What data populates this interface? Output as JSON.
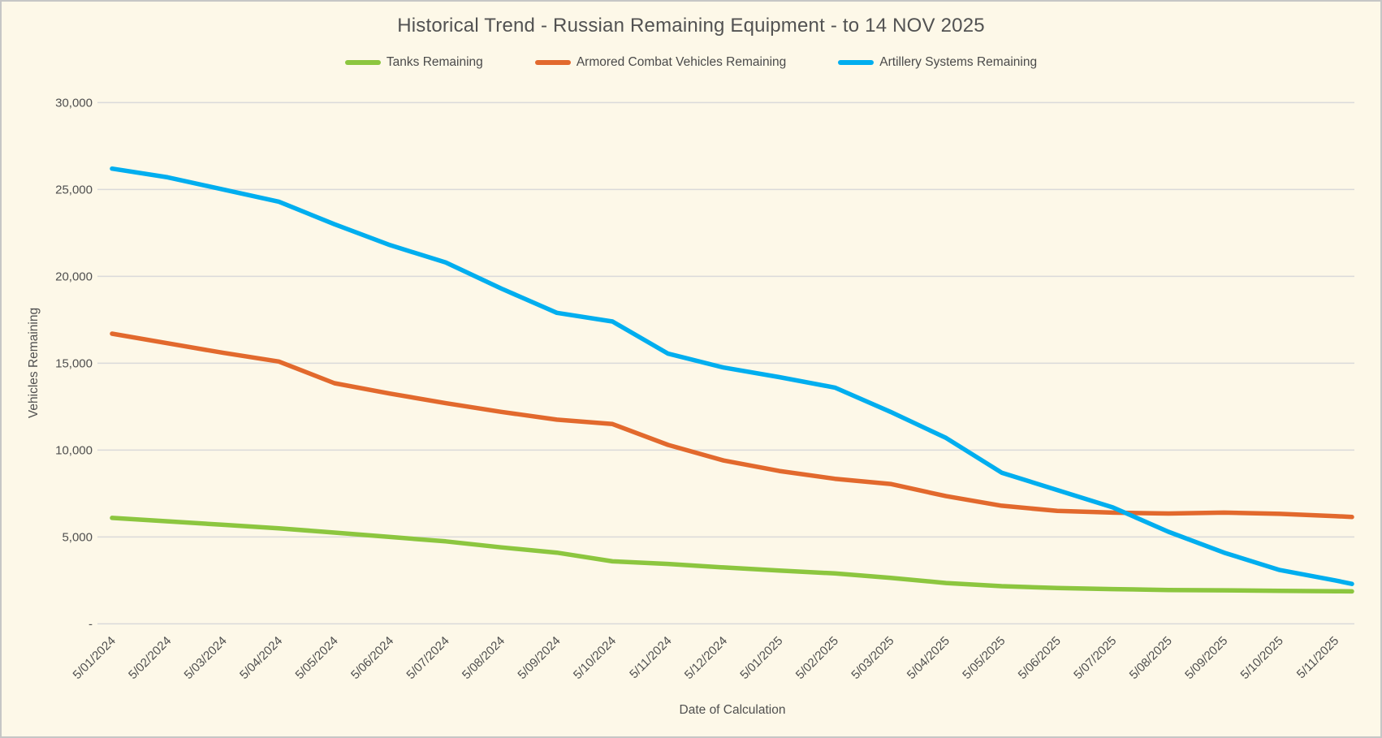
{
  "title": "Historical Trend - Russian Remaining Equipment - to 14 NOV 2025",
  "colors": {
    "background": "#FDF8E8",
    "frame_border": "#C6C6C6",
    "gridline": "#DADADA",
    "text": "#4f4f4f",
    "tanks_green": "#8CC63F",
    "acv_orange": "#E2692D",
    "artillery_blue": "#00AEEF"
  },
  "chart_data": {
    "type": "line",
    "title": "Historical Trend - Russian Remaining Equipment - to 14 NOV 2025",
    "xlabel": "Date of Calculation",
    "ylabel": "Vehicles Remaining",
    "ylim": [
      0,
      30000
    ],
    "y_tick_step": 5000,
    "y_tick_labels": [
      "-",
      "5,000",
      "10,000",
      "15,000",
      "20,000",
      "25,000",
      "30,000"
    ],
    "grid": "horizontal",
    "legend_position": "top",
    "x_labels": [
      "5/01/2024",
      "5/02/2024",
      "5/03/2024",
      "5/04/2024",
      "5/05/2024",
      "5/06/2024",
      "5/07/2024",
      "5/08/2024",
      "5/09/2024",
      "5/10/2024",
      "5/11/2024",
      "5/12/2024",
      "5/01/2025",
      "5/02/2025",
      "5/03/2025",
      "5/04/2025",
      "5/05/2025",
      "5/06/2025",
      "5/07/2025",
      "5/08/2025",
      "5/09/2025",
      "5/10/2025",
      "5/11/2025"
    ],
    "x_positions": [
      0,
      1,
      2,
      3,
      4,
      5,
      6,
      7,
      8,
      9,
      10,
      11,
      12,
      13,
      14,
      15,
      16,
      17,
      18,
      19,
      20,
      21,
      22,
      22.3
    ],
    "x_end_note": "series extend past the last tick to 14 NOV 2025",
    "series": [
      {
        "name": "Tanks Remaining",
        "color": "#8CC63F",
        "values": [
          6100,
          5900,
          5700,
          5500,
          5250,
          5000,
          4750,
          4400,
          4100,
          3600,
          3450,
          3250,
          3070,
          2900,
          2650,
          2350,
          2170,
          2060,
          2000,
          1950,
          1930,
          1900,
          1880,
          1870
        ]
      },
      {
        "name": "Armored Combat Vehicles Remaining",
        "color": "#E2692D",
        "values": [
          16700,
          16150,
          15600,
          15100,
          13850,
          13250,
          12700,
          12200,
          11750,
          11500,
          10300,
          9400,
          8800,
          8350,
          8050,
          7350,
          6800,
          6500,
          6400,
          6350,
          6400,
          6330,
          6200,
          6150
        ]
      },
      {
        "name": "Artillery Systems Remaining",
        "color": "#00AEEF",
        "values": [
          26200,
          25700,
          25000,
          24300,
          23000,
          21800,
          20800,
          19300,
          17900,
          17400,
          15550,
          14750,
          14200,
          13600,
          12200,
          10700,
          8700,
          7700,
          6700,
          5300,
          4100,
          3100,
          2500,
          2300
        ]
      }
    ]
  }
}
